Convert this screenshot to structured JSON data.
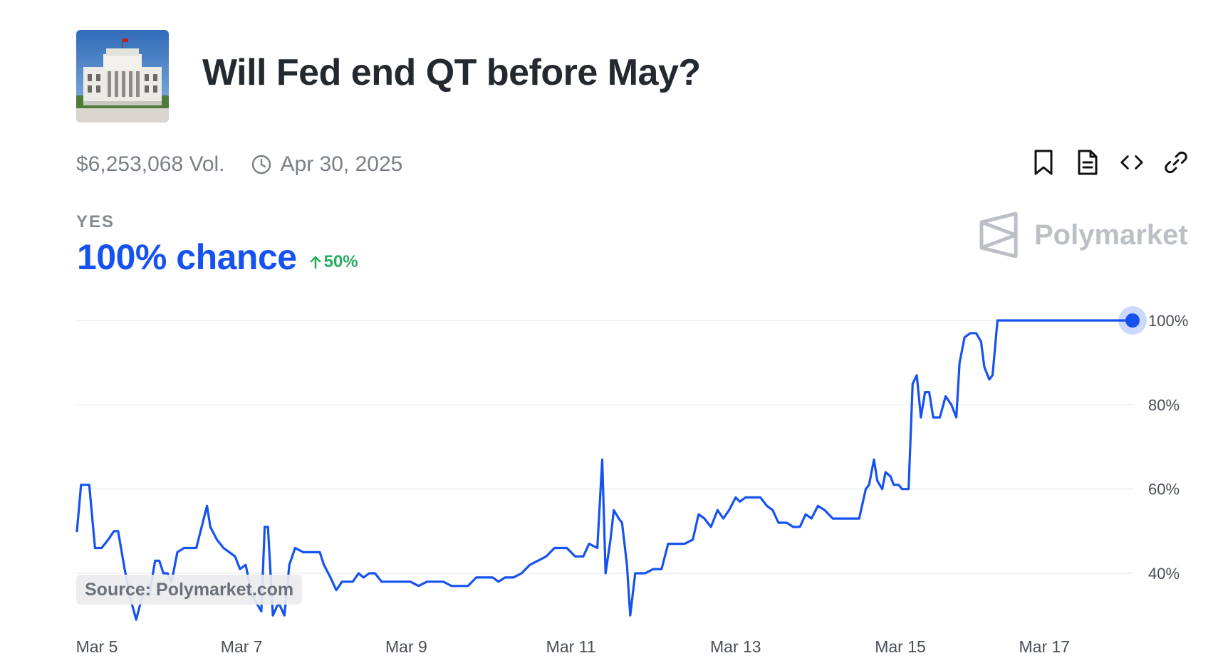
{
  "market": {
    "title": "Will Fed end QT before May?",
    "thumbnail_icon": "federal-reserve-building-image",
    "volume": "$6,253,068 Vol.",
    "end_date": "Apr 30, 2025",
    "outcome": "YES",
    "chance": "100% chance",
    "change": "50%",
    "change_direction": "up"
  },
  "toolbar": {
    "icons": [
      "bookmark-icon",
      "document-icon",
      "embed-code-icon",
      "link-icon"
    ]
  },
  "brand": {
    "name": "Polymarket",
    "logo_icon": "polymarket-logo-icon"
  },
  "source": "Source: Polymarket.com",
  "colors": {
    "accent": "#1652f0",
    "positive": "#27ae60",
    "muted": "#7a7f87"
  },
  "chart_data": {
    "type": "line",
    "title": "",
    "xlabel": "",
    "ylabel": "",
    "y_unit": "%",
    "x_unit": "days since Mar 5",
    "ylim": [
      28,
      100
    ],
    "y_ticks": [
      40,
      60,
      80,
      100
    ],
    "y_tick_labels": [
      "40%",
      "60%",
      "80%",
      "100%"
    ],
    "x_ticks": [
      0,
      2,
      4,
      6,
      8,
      10,
      11.75
    ],
    "x_tick_labels": [
      "Mar 5",
      "Mar 7",
      "Mar 9",
      "Mar 11",
      "Mar 13",
      "Mar 15",
      "Mar 17"
    ],
    "grid": true,
    "y_axis_position": "right",
    "series": [
      {
        "name": "Yes",
        "color": "#1652f0",
        "points": [
          [
            0.0,
            50
          ],
          [
            0.05,
            61
          ],
          [
            0.15,
            61
          ],
          [
            0.22,
            46
          ],
          [
            0.3,
            46
          ],
          [
            0.38,
            48
          ],
          [
            0.45,
            50
          ],
          [
            0.5,
            50
          ],
          [
            0.58,
            41
          ],
          [
            0.65,
            34
          ],
          [
            0.72,
            29
          ],
          [
            0.8,
            35
          ],
          [
            0.88,
            35
          ],
          [
            0.95,
            43
          ],
          [
            1.0,
            43
          ],
          [
            1.05,
            40
          ],
          [
            1.1,
            40
          ],
          [
            1.15,
            38
          ],
          [
            1.22,
            45
          ],
          [
            1.3,
            46
          ],
          [
            1.45,
            46
          ],
          [
            1.58,
            56
          ],
          [
            1.62,
            51
          ],
          [
            1.7,
            48
          ],
          [
            1.78,
            46
          ],
          [
            1.85,
            45
          ],
          [
            1.92,
            44
          ],
          [
            1.98,
            41
          ],
          [
            2.05,
            42
          ],
          [
            2.12,
            35
          ],
          [
            2.18,
            33
          ],
          [
            2.24,
            31
          ],
          [
            2.28,
            51
          ],
          [
            2.32,
            51
          ],
          [
            2.38,
            30
          ],
          [
            2.45,
            33
          ],
          [
            2.52,
            30
          ],
          [
            2.58,
            42
          ],
          [
            2.65,
            46
          ],
          [
            2.75,
            45
          ],
          [
            2.85,
            45
          ],
          [
            2.95,
            45
          ],
          [
            3.0,
            42
          ],
          [
            3.08,
            39
          ],
          [
            3.15,
            36
          ],
          [
            3.22,
            38
          ],
          [
            3.35,
            38
          ],
          [
            3.42,
            40
          ],
          [
            3.48,
            39
          ],
          [
            3.55,
            40
          ],
          [
            3.62,
            40
          ],
          [
            3.7,
            38
          ],
          [
            3.8,
            38
          ],
          [
            3.95,
            38
          ],
          [
            4.05,
            38
          ],
          [
            4.15,
            37
          ],
          [
            4.25,
            38
          ],
          [
            4.35,
            38
          ],
          [
            4.45,
            38
          ],
          [
            4.55,
            37
          ],
          [
            4.65,
            37
          ],
          [
            4.75,
            37
          ],
          [
            4.85,
            39
          ],
          [
            4.95,
            39
          ],
          [
            5.05,
            39
          ],
          [
            5.12,
            38
          ],
          [
            5.2,
            39
          ],
          [
            5.3,
            39
          ],
          [
            5.4,
            40
          ],
          [
            5.5,
            42
          ],
          [
            5.6,
            43
          ],
          [
            5.7,
            44
          ],
          [
            5.8,
            46
          ],
          [
            5.95,
            46
          ],
          [
            6.05,
            44
          ],
          [
            6.15,
            44
          ],
          [
            6.22,
            47
          ],
          [
            6.32,
            46
          ],
          [
            6.38,
            67
          ],
          [
            6.42,
            40
          ],
          [
            6.48,
            48
          ],
          [
            6.52,
            55
          ],
          [
            6.58,
            53
          ],
          [
            6.62,
            52
          ],
          [
            6.68,
            42
          ],
          [
            6.72,
            30
          ],
          [
            6.78,
            40
          ],
          [
            6.9,
            40
          ],
          [
            7.0,
            41
          ],
          [
            7.1,
            41
          ],
          [
            7.18,
            47
          ],
          [
            7.28,
            47
          ],
          [
            7.38,
            47
          ],
          [
            7.48,
            48
          ],
          [
            7.55,
            54
          ],
          [
            7.62,
            53
          ],
          [
            7.7,
            51
          ],
          [
            7.78,
            55
          ],
          [
            7.85,
            53
          ],
          [
            7.92,
            55
          ],
          [
            8.0,
            58
          ],
          [
            8.05,
            57
          ],
          [
            8.12,
            58
          ],
          [
            8.2,
            58
          ],
          [
            8.3,
            58
          ],
          [
            8.38,
            56
          ],
          [
            8.45,
            55
          ],
          [
            8.52,
            52
          ],
          [
            8.62,
            52
          ],
          [
            8.7,
            51
          ],
          [
            8.78,
            51
          ],
          [
            8.85,
            54
          ],
          [
            8.92,
            53
          ],
          [
            9.0,
            56
          ],
          [
            9.08,
            55
          ],
          [
            9.18,
            53
          ],
          [
            9.3,
            53
          ],
          [
            9.42,
            53
          ],
          [
            9.5,
            53
          ],
          [
            9.58,
            60
          ],
          [
            9.62,
            61
          ],
          [
            9.68,
            67
          ],
          [
            9.72,
            62
          ],
          [
            9.78,
            60
          ],
          [
            9.82,
            64
          ],
          [
            9.88,
            63
          ],
          [
            9.92,
            61
          ],
          [
            9.98,
            61
          ],
          [
            10.02,
            60
          ],
          [
            10.1,
            60
          ],
          [
            10.15,
            85
          ],
          [
            10.2,
            87
          ],
          [
            10.25,
            77
          ],
          [
            10.3,
            83
          ],
          [
            10.35,
            83
          ],
          [
            10.4,
            77
          ],
          [
            10.48,
            77
          ],
          [
            10.55,
            82
          ],
          [
            10.62,
            80
          ],
          [
            10.68,
            77
          ],
          [
            10.72,
            90
          ],
          [
            10.78,
            96
          ],
          [
            10.85,
            97
          ],
          [
            10.92,
            97
          ],
          [
            10.98,
            95
          ],
          [
            11.02,
            89
          ],
          [
            11.08,
            86
          ],
          [
            11.12,
            87
          ],
          [
            11.18,
            100
          ],
          [
            11.5,
            100
          ],
          [
            11.8,
            100
          ],
          [
            11.9,
            100
          ],
          [
            12.0,
            100
          ],
          [
            12.1,
            100
          ],
          [
            12.2,
            100
          ],
          [
            12.3,
            100
          ],
          [
            12.42,
            100
          ],
          [
            12.52,
            100
          ],
          [
            12.6,
            100
          ],
          [
            12.7,
            100
          ],
          [
            12.82,
            100
          ]
        ]
      }
    ]
  }
}
